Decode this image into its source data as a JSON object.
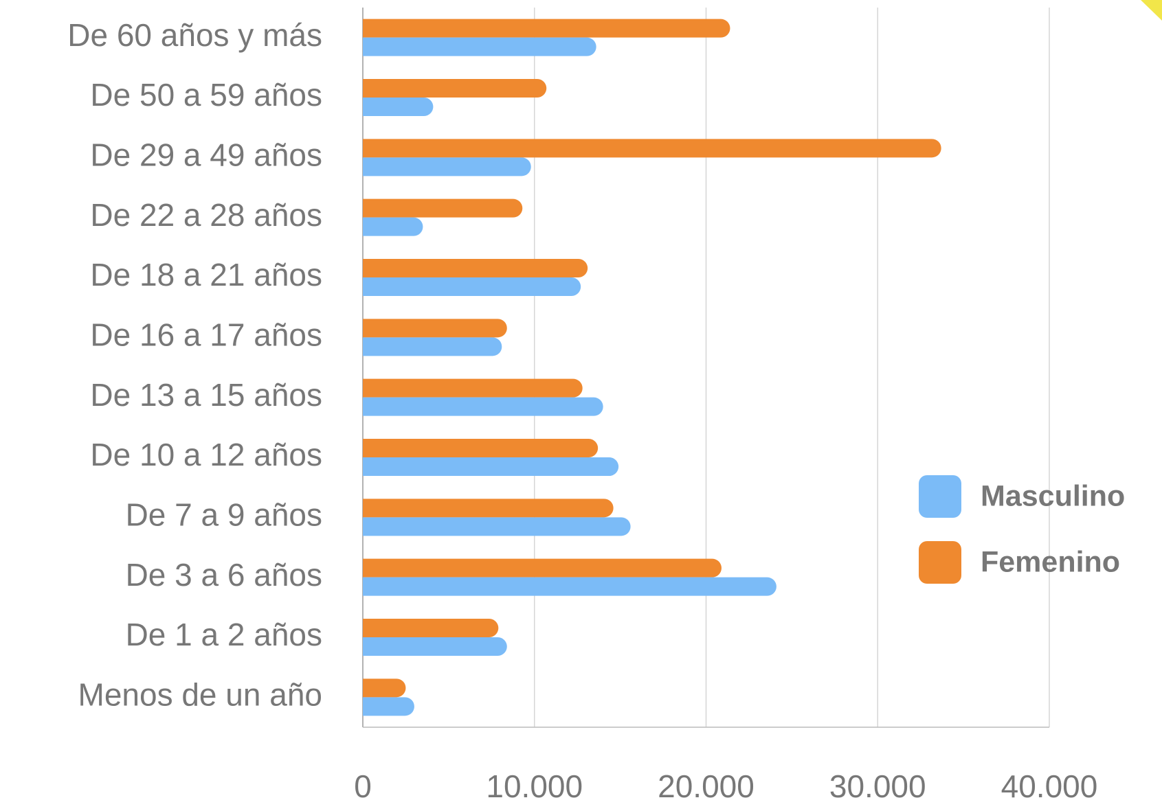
{
  "chart_data": {
    "type": "barh",
    "categories": [
      "De 60 años y más",
      "De 50 a 59 años",
      "De 29 a 49 años",
      "De 22 a 28 años",
      "De 18 a 21 años",
      "De 16 a 17 años",
      "De 13 a 15 años",
      "De 10 a 12 años",
      "De 7 a 9 años",
      "De 3 a 6 años",
      "De 1 a 2 años",
      "Menos de un año"
    ],
    "series": [
      {
        "name": "Masculino",
        "color": "#7bbbf7",
        "values": [
          13600,
          4100,
          9800,
          3500,
          12700,
          8100,
          14000,
          14900,
          15600,
          24100,
          8400,
          3000
        ]
      },
      {
        "name": "Femenino",
        "color": "#ef892f",
        "values": [
          21400,
          10700,
          33700,
          9300,
          13100,
          8400,
          12800,
          13700,
          14600,
          20900,
          7900,
          2500
        ]
      }
    ],
    "xlim": [
      0,
      40000
    ],
    "xticks": [
      0,
      {
        "value": 10000,
        "label": "10.000"
      },
      {
        "value": 20000,
        "label": "20.000"
      },
      {
        "value": 30000,
        "label": "30.000"
      },
      {
        "value": 40000,
        "label": "40.000"
      }
    ],
    "grid": true,
    "legend": "right"
  }
}
